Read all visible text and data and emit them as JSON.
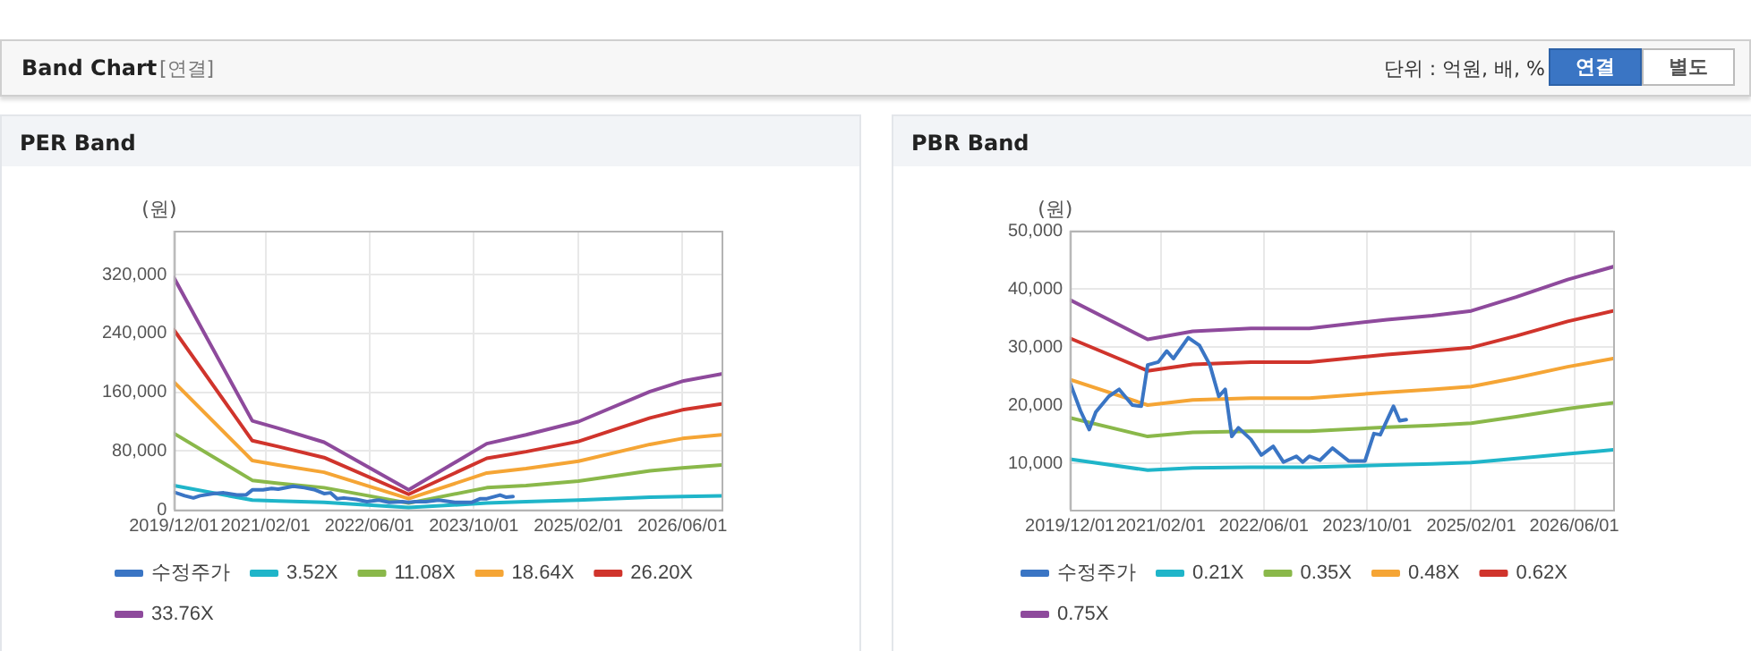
{
  "chart_data": [
    {
      "type": "other",
      "title": "Band Chart",
      "annotations": [
        "[연결]",
        "단위 : 억원, 배, %",
        "연결",
        "별도"
      ]
    },
    {
      "type": "line",
      "title": "PER Band",
      "ylabel": "(원)",
      "grid": true,
      "legend": "bottom",
      "marker": "none",
      "line_style": "solid",
      "xlim": [
        "2019-12-01",
        "2026-12-01"
      ],
      "xticks": [
        {
          "value": "2019-12-01",
          "label": "2019/12/01"
        },
        {
          "value": "2021-02-01",
          "label": "2021/02/01"
        },
        {
          "value": "2022-06-01",
          "label": "2022/06/01"
        },
        {
          "value": "2023-10-01",
          "label": "2023/10/01"
        },
        {
          "value": "2025-02-01",
          "label": "2025/02/01"
        },
        {
          "value": "2026-06-01",
          "label": "2026/06/01"
        }
      ],
      "ylim": [
        0,
        380000
      ],
      "yticks": [
        0,
        {
          "value": 80000,
          "label": "80,000"
        },
        {
          "value": 160000,
          "label": "160,000"
        },
        {
          "value": 240000,
          "label": "240,000"
        },
        {
          "value": 320000,
          "label": "320,000"
        }
      ],
      "x": [
        "2019-12-01",
        "2020-12-01",
        "2021-04-01",
        "2021-11-01",
        "2022-12-01",
        "2023-12-01",
        "2024-06-01",
        "2025-02-01",
        "2026-01-01",
        "2026-06-01",
        "2026-12-01"
      ],
      "series": [
        {
          "name": "수정주가",
          "color": "#3a75c4",
          "x": [
            "2019-12-01",
            "2020-01-20",
            "2020-03-01",
            "2020-04-01",
            "2020-06-01",
            "2020-07-20",
            "2020-09-20",
            "2020-11-01",
            "2020-12-01",
            "2021-01-20",
            "2021-03-01",
            "2021-04-01",
            "2021-06-10",
            "2021-08-01",
            "2021-09-20",
            "2021-11-01",
            "2021-12-01",
            "2022-01-01",
            "2022-02-01",
            "2022-04-01",
            "2022-05-20",
            "2022-07-15",
            "2022-09-01",
            "2022-11-01",
            "2022-12-01",
            "2023-01-01",
            "2023-02-20",
            "2023-04-20",
            "2023-07-05",
            "2023-09-20",
            "2023-11-01",
            "2023-12-01",
            "2024-02-01",
            "2024-03-01",
            "2024-04-01"
          ],
          "values": [
            24000,
            19000,
            16000,
            19000,
            22000,
            23000,
            20000,
            20000,
            27000,
            27000,
            29000,
            28000,
            32000,
            30000,
            27000,
            22000,
            23000,
            15000,
            16000,
            14000,
            11000,
            13000,
            10000,
            11000,
            10000,
            11000,
            11000,
            13000,
            10000,
            10000,
            15000,
            15000,
            20000,
            17000,
            18000
          ]
        },
        {
          "name": "3.52X",
          "color": "#1fb5c9",
          "values": [
            33000,
            13000,
            12000,
            10000,
            3000,
            9000,
            11000,
            13000,
            17000,
            18000,
            19000
          ]
        },
        {
          "name": "11.08X",
          "color": "#8ab84a",
          "values": [
            104000,
            40000,
            36000,
            30000,
            9000,
            30000,
            33000,
            39000,
            53000,
            57000,
            61000
          ]
        },
        {
          "name": "18.64X",
          "color": "#f5a535",
          "values": [
            174000,
            67000,
            61000,
            51000,
            15000,
            50000,
            56000,
            66000,
            89000,
            97000,
            102000
          ]
        },
        {
          "name": "26.20X",
          "color": "#d0342c",
          "values": [
            245000,
            94000,
            86000,
            71000,
            21000,
            70000,
            79000,
            93000,
            125000,
            136000,
            144000
          ]
        },
        {
          "name": "33.76X",
          "color": "#8e4a9c",
          "values": [
            316000,
            121000,
            111000,
            92000,
            27000,
            90000,
            102000,
            120000,
            161000,
            175000,
            185000
          ]
        }
      ]
    },
    {
      "type": "line",
      "title": "PBR Band",
      "ylabel": "(원)",
      "grid": true,
      "legend": "bottom",
      "marker": "none",
      "line_style": "solid",
      "xlim": [
        "2019-12-01",
        "2026-12-01"
      ],
      "xticks": [
        {
          "value": "2019-12-01",
          "label": "2019/12/01"
        },
        {
          "value": "2021-02-01",
          "label": "2021/02/01"
        },
        {
          "value": "2022-06-01",
          "label": "2022/06/01"
        },
        {
          "value": "2023-10-01",
          "label": "2023/10/01"
        },
        {
          "value": "2025-02-01",
          "label": "2025/02/01"
        },
        {
          "value": "2026-06-01",
          "label": "2026/06/01"
        }
      ],
      "ylim": [
        2000,
        50000
      ],
      "yticks": [
        {
          "value": 10000,
          "label": "10,000"
        },
        {
          "value": 20000,
          "label": "20,000"
        },
        {
          "value": 30000,
          "label": "30,000"
        },
        {
          "value": 40000,
          "label": "40,000"
        },
        {
          "value": 50000,
          "label": "50,000"
        }
      ],
      "x": [
        "2019-12-01",
        "2020-12-01",
        "2021-07-01",
        "2022-04-01",
        "2023-01-01",
        "2024-01-01",
        "2024-08-01",
        "2025-02-01",
        "2025-09-01",
        "2026-05-01",
        "2026-12-01"
      ],
      "series": [
        {
          "name": "수정주가",
          "color": "#3a75c4",
          "x": [
            "2019-12-01",
            "2020-01-20",
            "2020-03-01",
            "2020-04-01",
            "2020-06-01",
            "2020-07-20",
            "2020-09-20",
            "2020-11-01",
            "2020-12-01",
            "2021-01-20",
            "2021-03-01",
            "2021-04-01",
            "2021-06-10",
            "2021-08-01",
            "2021-09-20",
            "2021-11-01",
            "2021-12-01",
            "2022-01-01",
            "2022-02-01",
            "2022-04-01",
            "2022-05-20",
            "2022-07-15",
            "2022-09-01",
            "2022-11-01",
            "2022-12-01",
            "2023-01-01",
            "2023-02-20",
            "2023-04-20",
            "2023-07-05",
            "2023-09-20",
            "2023-11-01",
            "2023-12-01",
            "2024-02-01",
            "2024-03-01",
            "2024-04-01"
          ],
          "values": [
            23900,
            19000,
            15800,
            18800,
            21500,
            22700,
            20000,
            19800,
            26900,
            27400,
            29300,
            28000,
            31600,
            30300,
            26900,
            21500,
            22700,
            14600,
            16100,
            14100,
            11400,
            12900,
            10200,
            11200,
            10200,
            11200,
            10500,
            12600,
            10400,
            10400,
            15100,
            14900,
            19800,
            17300,
            17500
          ]
        },
        {
          "name": "0.21X",
          "color": "#1fb5c9",
          "values": [
            10700,
            8800,
            9200,
            9300,
            9300,
            9700,
            9900,
            10100,
            10800,
            11600,
            12300
          ]
        },
        {
          "name": "0.35X",
          "color": "#8ab84a",
          "values": [
            17800,
            14600,
            15300,
            15500,
            15500,
            16200,
            16500,
            16900,
            18000,
            19400,
            20400
          ]
        },
        {
          "name": "0.48X",
          "color": "#f5a535",
          "values": [
            24400,
            20000,
            20900,
            21200,
            21200,
            22200,
            22700,
            23200,
            24700,
            26600,
            28000
          ]
        },
        {
          "name": "0.62X",
          "color": "#d0342c",
          "values": [
            31500,
            25900,
            27000,
            27400,
            27400,
            28700,
            29300,
            29900,
            31900,
            34400,
            36200
          ]
        },
        {
          "name": "0.75X",
          "color": "#8e4a9c",
          "values": [
            38100,
            31300,
            32700,
            33200,
            33200,
            34700,
            35400,
            36200,
            38600,
            41600,
            43800
          ]
        }
      ]
    }
  ]
}
